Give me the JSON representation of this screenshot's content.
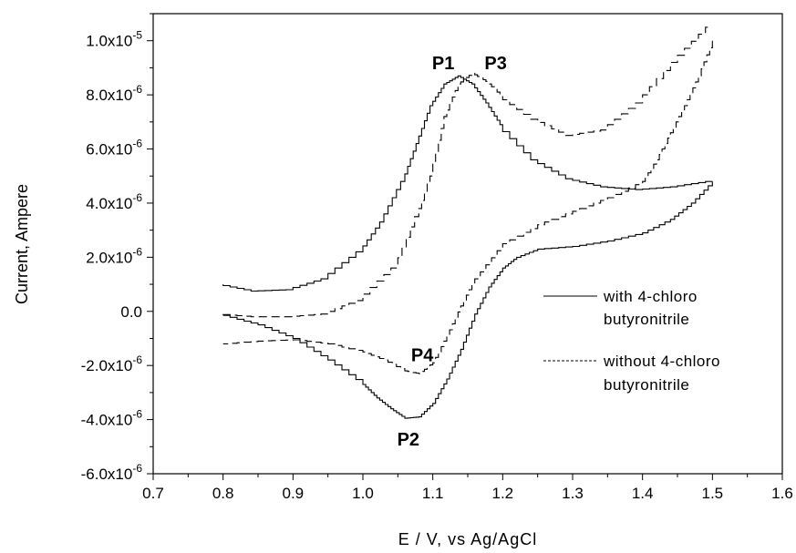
{
  "chart_data": {
    "type": "line",
    "xlabel": "E / V, vs Ag/AgCl",
    "ylabel": "Current, Ampere",
    "xlim": [
      0.7,
      1.6
    ],
    "ylim": [
      -6e-06,
      1.1e-05
    ],
    "x_ticks": [
      0.7,
      0.8,
      0.9,
      1.0,
      1.1,
      1.2,
      1.3,
      1.4,
      1.5,
      1.6
    ],
    "x_tick_labels": [
      "0.7",
      "0.8",
      "0.9",
      "1.0",
      "1.1",
      "1.2",
      "1.3",
      "1.4",
      "1.5",
      "1.6"
    ],
    "y_ticks": [
      -6e-06,
      -4e-06,
      -2e-06,
      0,
      2e-06,
      4e-06,
      6e-06,
      8e-06,
      1e-05
    ],
    "y_tick_labels": [
      {
        "mantissa": "-6.0x10",
        "exp": "-6"
      },
      {
        "mantissa": "-4.0x10",
        "exp": "-6"
      },
      {
        "mantissa": "-2.0x10",
        "exp": "-6"
      },
      {
        "mantissa": "0.0",
        "exp": ""
      },
      {
        "mantissa": "2.0x10",
        "exp": "-6"
      },
      {
        "mantissa": "4.0x10",
        "exp": "-6"
      },
      {
        "mantissa": "6.0x10",
        "exp": "-6"
      },
      {
        "mantissa": "8.0x10",
        "exp": "-6"
      },
      {
        "mantissa": "1.0x10",
        "exp": "-5"
      }
    ],
    "legend_position": "right",
    "legend": [
      {
        "style": "solid",
        "lines": [
          "with 4-chloro",
          "butyronitrile"
        ]
      },
      {
        "style": "dashed",
        "lines": [
          "without 4-chloro",
          "butyronitrile"
        ]
      }
    ],
    "annotations": [
      {
        "text": "P1",
        "x": 1.115,
        "y": 8.95e-06
      },
      {
        "text": "P3",
        "x": 1.19,
        "y": 8.95e-06
      },
      {
        "text": "P2",
        "x": 1.065,
        "y": -4.95e-06
      },
      {
        "text": "P4",
        "x": 1.085,
        "y": -1.85e-06
      }
    ],
    "series": [
      {
        "style": "solid",
        "forward": {
          "x": [
            0.8,
            0.85,
            0.9,
            0.95,
            1.0,
            1.03,
            1.06,
            1.08,
            1.1,
            1.12,
            1.14,
            1.16,
            1.18,
            1.2,
            1.25,
            1.3,
            1.35,
            1.4,
            1.45,
            1.5
          ],
          "y": [
            1e-06,
            7.5e-07,
            8e-07,
            1.2e-06,
            2.2e-06,
            3.3e-06,
            4.8e-06,
            6.2e-06,
            7.6e-06,
            8.4e-06,
            8.7e-06,
            8.4e-06,
            7.7e-06,
            6.9e-06,
            5.6e-06,
            4.9e-06,
            4.6e-06,
            4.5e-06,
            4.6e-06,
            4.8e-06
          ]
        },
        "reverse": {
          "x": [
            1.5,
            1.47,
            1.44,
            1.4,
            1.35,
            1.3,
            1.25,
            1.22,
            1.2,
            1.18,
            1.16,
            1.14,
            1.12,
            1.1,
            1.08,
            1.06,
            1.04,
            1.02,
            1.0,
            0.95,
            0.9,
            0.85,
            0.8
          ],
          "y": [
            4.8e-06,
            4e-06,
            3.4e-06,
            2.9e-06,
            2.6e-06,
            2.4e-06,
            2.3e-06,
            2e-06,
            1.6e-06,
            9e-07,
            -1e-07,
            -1.4e-06,
            -2.5e-06,
            -3.4e-06,
            -3.9e-06,
            -3.95e-06,
            -3.6e-06,
            -3.2e-06,
            -2.7e-06,
            -1.8e-06,
            -1e-06,
            -5e-07,
            -1.5e-07
          ]
        }
      },
      {
        "style": "dashed",
        "forward": {
          "x": [
            0.8,
            0.85,
            0.9,
            0.95,
            1.0,
            1.05,
            1.08,
            1.1,
            1.12,
            1.14,
            1.16,
            1.18,
            1.2,
            1.25,
            1.3,
            1.35,
            1.4,
            1.45,
            1.5
          ],
          "y": [
            -1e-07,
            -2e-07,
            -2e-07,
            -1e-07,
            4e-07,
            1.6e-06,
            3.5e-06,
            5e-06,
            7.2e-06,
            8.4e-06,
            8.8e-06,
            8.5e-06,
            8e-06,
            7.1e-06,
            6.5e-06,
            6.7e-06,
            7.7e-06,
            9.2e-06,
            1.05e-05
          ]
        },
        "reverse": {
          "x": [
            1.5,
            1.48,
            1.46,
            1.44,
            1.42,
            1.4,
            1.35,
            1.3,
            1.25,
            1.2,
            1.16,
            1.14,
            1.12,
            1.1,
            1.08,
            1.06,
            1.03,
            1.0,
            0.95,
            0.9,
            0.85,
            0.8
          ],
          "y": [
            1e-05,
            8.7e-06,
            7.6e-06,
            6.6e-06,
            5.6e-06,
            4.8e-06,
            4.2e-06,
            3.7e-06,
            3.2e-06,
            2.5e-06,
            1.2e-06,
            2e-07,
            -9e-07,
            -1.9e-06,
            -2.3e-06,
            -2.2e-06,
            -1.8e-06,
            -1.5e-06,
            -1.2e-06,
            -1.05e-06,
            -1.1e-06,
            -1.2e-06
          ]
        }
      }
    ]
  }
}
